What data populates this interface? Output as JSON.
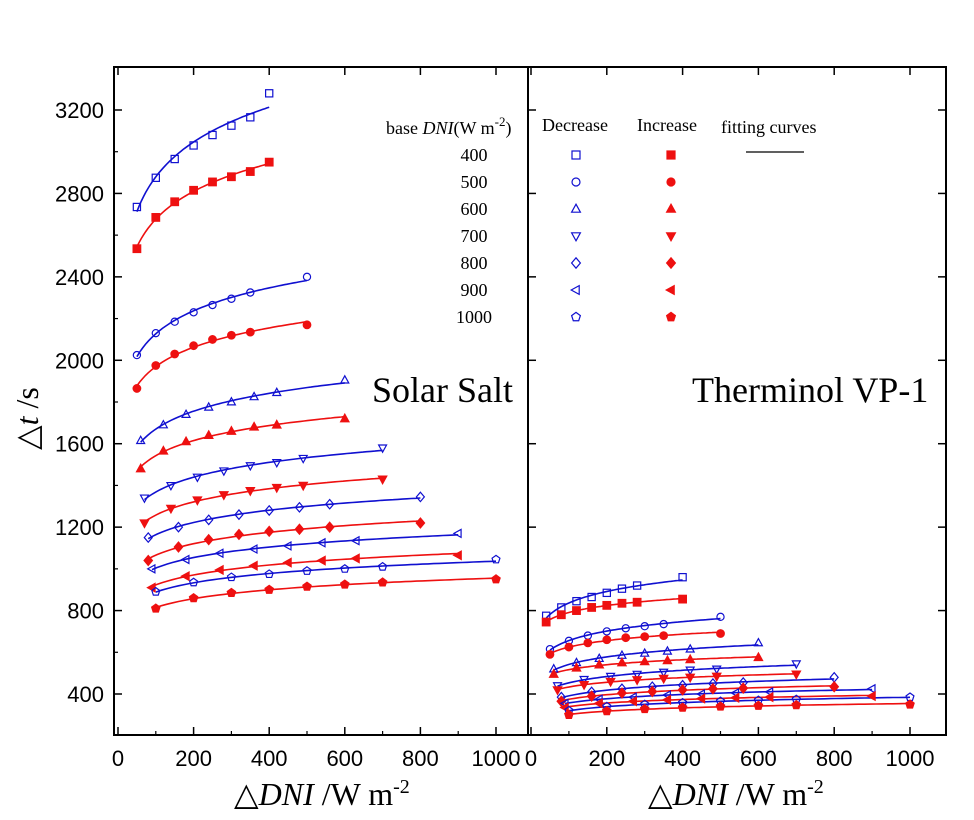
{
  "chart_data": [
    {
      "panel": "left",
      "type": "scatter",
      "title": "Solar Salt",
      "xlabel_prefix": "△",
      "xlabel_italic": "DNI",
      "xlabel_suffix": " /W m",
      "xlabel_sup": "-2",
      "ylabel_prefix": "△",
      "ylabel_italic": "t",
      "ylabel_suffix": " /s",
      "xlim": [
        0,
        1050
      ],
      "ylim": [
        200,
        3400
      ],
      "xticks": [
        "0",
        "200",
        "400",
        "600",
        "800",
        "1000"
      ],
      "yticks": [
        "400",
        "800",
        "1200",
        "1600",
        "2000",
        "2400",
        "2800",
        "3200"
      ],
      "groups": [
        {
          "base": "400",
          "decrease": [
            [
              50,
              2735
            ],
            [
              100,
              2875
            ],
            [
              150,
              2965
            ],
            [
              200,
              3030
            ],
            [
              250,
              3080
            ],
            [
              300,
              3125
            ],
            [
              350,
              3165
            ],
            [
              400,
              3280
            ]
          ],
          "increase": [
            [
              50,
              2535
            ],
            [
              100,
              2685
            ],
            [
              150,
              2760
            ],
            [
              200,
              2815
            ],
            [
              250,
              2855
            ],
            [
              300,
              2880
            ],
            [
              350,
              2905
            ],
            [
              400,
              2950
            ]
          ]
        },
        {
          "base": "500",
          "decrease": [
            [
              50,
              2025
            ],
            [
              100,
              2130
            ],
            [
              150,
              2185
            ],
            [
              200,
              2230
            ],
            [
              250,
              2265
            ],
            [
              300,
              2295
            ],
            [
              350,
              2325
            ],
            [
              500,
              2400
            ]
          ],
          "increase": [
            [
              50,
              1865
            ],
            [
              100,
              1975
            ],
            [
              150,
              2030
            ],
            [
              200,
              2070
            ],
            [
              250,
              2100
            ],
            [
              300,
              2120
            ],
            [
              350,
              2135
            ],
            [
              500,
              2170
            ]
          ]
        },
        {
          "base": "600",
          "decrease": [
            [
              60,
              1615
            ],
            [
              120,
              1690
            ],
            [
              180,
              1740
            ],
            [
              240,
              1775
            ],
            [
              300,
              1800
            ],
            [
              360,
              1825
            ],
            [
              420,
              1845
            ],
            [
              600,
              1905
            ]
          ],
          "increase": [
            [
              60,
              1480
            ],
            [
              120,
              1565
            ],
            [
              180,
              1610
            ],
            [
              240,
              1640
            ],
            [
              300,
              1660
            ],
            [
              360,
              1680
            ],
            [
              420,
              1690
            ],
            [
              600,
              1720
            ]
          ]
        },
        {
          "base": "700",
          "decrease": [
            [
              70,
              1340
            ],
            [
              140,
              1400
            ],
            [
              210,
              1440
            ],
            [
              280,
              1470
            ],
            [
              350,
              1495
            ],
            [
              420,
              1510
            ],
            [
              490,
              1530
            ],
            [
              700,
              1580
            ]
          ],
          "increase": [
            [
              70,
              1220
            ],
            [
              140,
              1290
            ],
            [
              210,
              1330
            ],
            [
              280,
              1355
            ],
            [
              350,
              1375
            ],
            [
              420,
              1390
            ],
            [
              490,
              1400
            ],
            [
              700,
              1430
            ]
          ]
        },
        {
          "base": "800",
          "decrease": [
            [
              80,
              1150
            ],
            [
              160,
              1200
            ],
            [
              240,
              1235
            ],
            [
              320,
              1260
            ],
            [
              400,
              1280
            ],
            [
              480,
              1295
            ],
            [
              560,
              1310
            ],
            [
              800,
              1345
            ]
          ],
          "increase": [
            [
              80,
              1040
            ],
            [
              160,
              1105
            ],
            [
              240,
              1140
            ],
            [
              320,
              1165
            ],
            [
              400,
              1180
            ],
            [
              480,
              1190
            ],
            [
              560,
              1200
            ],
            [
              800,
              1220
            ]
          ]
        },
        {
          "base": "900",
          "decrease": [
            [
              90,
              1000
            ],
            [
              180,
              1045
            ],
            [
              270,
              1075
            ],
            [
              360,
              1095
            ],
            [
              450,
              1110
            ],
            [
              540,
              1125
            ],
            [
              630,
              1135
            ],
            [
              900,
              1170
            ]
          ],
          "increase": [
            [
              90,
              910
            ],
            [
              180,
              965
            ],
            [
              270,
              995
            ],
            [
              360,
              1015
            ],
            [
              450,
              1030
            ],
            [
              540,
              1040
            ],
            [
              630,
              1050
            ],
            [
              900,
              1065
            ]
          ]
        },
        {
          "base": "1000",
          "decrease": [
            [
              100,
              890
            ],
            [
              200,
              935
            ],
            [
              300,
              960
            ],
            [
              400,
              975
            ],
            [
              500,
              990
            ],
            [
              600,
              1000
            ],
            [
              700,
              1010
            ],
            [
              1000,
              1045
            ]
          ],
          "increase": [
            [
              100,
              810
            ],
            [
              200,
              860
            ],
            [
              300,
              885
            ],
            [
              400,
              900
            ],
            [
              500,
              915
            ],
            [
              600,
              925
            ],
            [
              700,
              935
            ],
            [
              1000,
              950
            ]
          ]
        }
      ]
    },
    {
      "panel": "right",
      "type": "scatter",
      "title": "Therminol VP-1",
      "xlabel_prefix": "△",
      "xlabel_italic": "DNI",
      "xlabel_suffix": " /W m",
      "xlabel_sup": "-2",
      "xlim": [
        0,
        1050
      ],
      "ylim": [
        200,
        3400
      ],
      "xticks": [
        "0",
        "200",
        "400",
        "600",
        "800",
        "1000"
      ],
      "groups": [
        {
          "base": "400",
          "decrease": [
            [
              40,
              775
            ],
            [
              80,
              815
            ],
            [
              120,
              845
            ],
            [
              160,
              865
            ],
            [
              200,
              885
            ],
            [
              240,
              905
            ],
            [
              280,
              920
            ],
            [
              400,
              960
            ]
          ],
          "increase": [
            [
              40,
              745
            ],
            [
              80,
              780
            ],
            [
              120,
              800
            ],
            [
              160,
              815
            ],
            [
              200,
              825
            ],
            [
              240,
              835
            ],
            [
              280,
              840
            ],
            [
              400,
              855
            ]
          ]
        },
        {
          "base": "500",
          "decrease": [
            [
              50,
              615
            ],
            [
              100,
              655
            ],
            [
              150,
              680
            ],
            [
              200,
              700
            ],
            [
              250,
              715
            ],
            [
              300,
              725
            ],
            [
              350,
              735
            ],
            [
              500,
              770
            ]
          ],
          "increase": [
            [
              50,
              590
            ],
            [
              100,
              625
            ],
            [
              150,
              645
            ],
            [
              200,
              660
            ],
            [
              250,
              670
            ],
            [
              300,
              675
            ],
            [
              350,
              680
            ],
            [
              500,
              690
            ]
          ]
        },
        {
          "base": "600",
          "decrease": [
            [
              60,
              520
            ],
            [
              120,
              550
            ],
            [
              180,
              570
            ],
            [
              240,
              585
            ],
            [
              300,
              595
            ],
            [
              360,
              605
            ],
            [
              420,
              615
            ],
            [
              600,
              645
            ]
          ],
          "increase": [
            [
              60,
              495
            ],
            [
              120,
              525
            ],
            [
              180,
              540
            ],
            [
              240,
              550
            ],
            [
              300,
              555
            ],
            [
              360,
              560
            ],
            [
              420,
              565
            ],
            [
              600,
              575
            ]
          ]
        },
        {
          "base": "700",
          "decrease": [
            [
              70,
              440
            ],
            [
              140,
              470
            ],
            [
              210,
              485
            ],
            [
              280,
              495
            ],
            [
              350,
              505
            ],
            [
              420,
              515
            ],
            [
              490,
              520
            ],
            [
              700,
              545
            ]
          ],
          "increase": [
            [
              70,
              420
            ],
            [
              140,
              445
            ],
            [
              210,
              460
            ],
            [
              280,
              468
            ],
            [
              350,
              475
            ],
            [
              420,
              480
            ],
            [
              490,
              485
            ],
            [
              700,
              495
            ]
          ]
        },
        {
          "base": "800",
          "decrease": [
            [
              80,
              385
            ],
            [
              160,
              410
            ],
            [
              240,
              425
            ],
            [
              320,
              435
            ],
            [
              400,
              442
            ],
            [
              480,
              450
            ],
            [
              560,
              455
            ],
            [
              800,
              480
            ]
          ],
          "increase": [
            [
              80,
              365
            ],
            [
              160,
              390
            ],
            [
              240,
              405
            ],
            [
              320,
              412
            ],
            [
              400,
              420
            ],
            [
              480,
              425
            ],
            [
              560,
              428
            ],
            [
              800,
              435
            ]
          ]
        },
        {
          "base": "900",
          "decrease": [
            [
              90,
              355
            ],
            [
              180,
              375
            ],
            [
              270,
              385
            ],
            [
              360,
              395
            ],
            [
              450,
              400
            ],
            [
              540,
              405
            ],
            [
              630,
              410
            ],
            [
              900,
              425
            ]
          ],
          "increase": [
            [
              90,
              335
            ],
            [
              180,
              355
            ],
            [
              270,
              365
            ],
            [
              360,
              372
            ],
            [
              450,
              378
            ],
            [
              540,
              382
            ],
            [
              630,
              385
            ],
            [
              900,
              390
            ]
          ]
        },
        {
          "base": "1000",
          "decrease": [
            [
              100,
              320
            ],
            [
              200,
              340
            ],
            [
              300,
              350
            ],
            [
              400,
              358
            ],
            [
              500,
              365
            ],
            [
              600,
              370
            ],
            [
              700,
              374
            ],
            [
              1000,
              385
            ]
          ],
          "increase": [
            [
              100,
              300
            ],
            [
              200,
              318
            ],
            [
              300,
              328
            ],
            [
              400,
              335
            ],
            [
              500,
              340
            ],
            [
              600,
              344
            ],
            [
              700,
              347
            ],
            [
              1000,
              350
            ]
          ]
        }
      ]
    }
  ],
  "legend": {
    "header_base_prefix": "base ",
    "header_base_italic": "DNI",
    "header_base_suffix": "(W m",
    "header_base_sup": "-2",
    "header_base_close": ")",
    "header_decrease": "Decrease",
    "header_increase": "Increase",
    "header_fit": "fitting curves",
    "rows": [
      "400",
      "500",
      "600",
      "700",
      "800",
      "900",
      "1000"
    ],
    "markers": [
      "square",
      "circle",
      "triangle-up",
      "triangle-down",
      "diamond",
      "triangle-left",
      "pentagon"
    ]
  },
  "colors": {
    "decrease": "#1010d0",
    "increase": "#ee1010",
    "fit": "#1010d0"
  }
}
